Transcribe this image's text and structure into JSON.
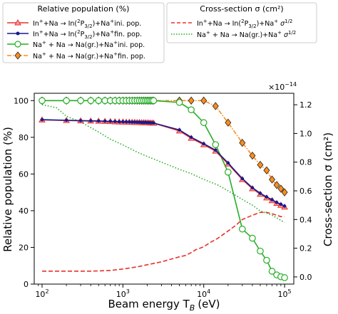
{
  "chart_data": {
    "type": "line",
    "xlabel": "Beam energy T",
    "xlabel_sub": "B",
    "xlabel_unit": "(eV)",
    "ylabel_left": "Relative population (%)",
    "ylabel_right": "Cross-section σ (cm²)",
    "x_scale": "log",
    "xlim": [
      80,
      130000
    ],
    "ylim_left": [
      0,
      104
    ],
    "ylim_right": [
      -0.05,
      1.28
    ],
    "x_ticks": [
      {
        "value": 100,
        "base": "10",
        "exp": "2"
      },
      {
        "value": 1000,
        "base": "10",
        "exp": "3"
      },
      {
        "value": 10000,
        "base": "10",
        "exp": "4"
      },
      {
        "value": 100000,
        "base": "10",
        "exp": "5"
      }
    ],
    "y_ticks_left": [
      "0",
      "20",
      "40",
      "60",
      "80",
      "100"
    ],
    "y_tick_values_left": [
      0,
      20,
      40,
      60,
      80,
      100
    ],
    "y_ticks_right": [
      "0.0",
      "0.2",
      "0.4",
      "0.6",
      "0.8",
      "1.0",
      "1.2"
    ],
    "y_tick_values_right": [
      0.0,
      0.2,
      0.4,
      0.6,
      0.8,
      1.0,
      1.2
    ],
    "right_multiplier": "×10",
    "right_multiplier_exp": "−14",
    "legend_left_title": "Relative population (%)",
    "legend_right_title": "Cross-section σ (cm²)",
    "legend_left_entries": [
      {
        "pre": "In",
        "sup1": "+",
        "mid": "+Na → In(",
        "sup2": "2",
        "p": "P",
        "sub": "3/2",
        "post": ")+Na",
        "sup3": "+",
        "end": "ini. pop."
      },
      {
        "pre": "In",
        "sup1": "+",
        "mid": "+Na → In(",
        "sup2": "2",
        "p": "P",
        "sub": "3/2",
        "post": ")+Na",
        "sup3": "+",
        "end": "fin. pop."
      },
      {
        "text1": "Na",
        "sup1": "+",
        "text2": " + Na → Na(gr.)+Na",
        "sup2": "+",
        "text3": "ini. pop."
      },
      {
        "text1": "Na",
        "sup1": "+",
        "text2": " + Na → Na(gr.)+Na",
        "sup2": "+",
        "text3": "fin. pop."
      }
    ],
    "legend_right_entries": [
      {
        "pre": "In",
        "sup1": "+",
        "mid": "+Na → In(",
        "sup2": "2",
        "p": "P",
        "sub": "3/2",
        "post": ")+Na",
        "sup3": "+",
        "sig": " σ",
        "sup4": "1/2"
      },
      {
        "text1": "Na",
        "sup1": "+",
        "text2": " + Na → Na(gr.)+Na",
        "sup2": "+",
        "sig": " σ",
        "sup4": "1/2"
      }
    ],
    "series": [
      {
        "color": "#e8322a",
        "style": "solid",
        "marker": "triangle",
        "axis": "left",
        "x": [
          100,
          200,
          300,
          400,
          500,
          600,
          700,
          800,
          900,
          1000,
          1100,
          1200,
          1300,
          1400,
          1500,
          1600,
          1700,
          1800,
          1900,
          2000,
          2100,
          2200,
          2300,
          2400,
          5000,
          7000,
          10000,
          14000,
          20000,
          30000,
          40000,
          50000,
          60000,
          70000,
          80000,
          90000,
          100000
        ],
        "y": [
          89.5,
          89.2,
          89.0,
          88.9,
          88.8,
          88.7,
          88.6,
          88.5,
          88.4,
          88.4,
          88.3,
          88.3,
          88.2,
          88.2,
          88.1,
          88.1,
          88.0,
          88.0,
          88.0,
          87.9,
          87.9,
          87.8,
          87.8,
          87.7,
          83.5,
          79.5,
          76.0,
          72.5,
          65.5,
          57.0,
          52.0,
          49.0,
          47.0,
          45.5,
          44.0,
          43.0,
          42.0
        ]
      },
      {
        "color": "#1a1a8c",
        "style": "solid",
        "marker": "dot",
        "axis": "left",
        "x": [
          100,
          200,
          300,
          400,
          500,
          600,
          700,
          800,
          900,
          1000,
          1100,
          1200,
          1300,
          1400,
          1500,
          1600,
          1700,
          1800,
          1900,
          2000,
          2100,
          2200,
          2300,
          2400,
          5000,
          7000,
          10000,
          14000,
          20000,
          30000,
          40000,
          50000,
          60000,
          70000,
          80000,
          90000,
          100000
        ],
        "y": [
          89.6,
          89.3,
          89.1,
          89.0,
          88.9,
          88.8,
          88.7,
          88.6,
          88.5,
          88.5,
          88.4,
          88.4,
          88.3,
          88.3,
          88.2,
          88.2,
          88.1,
          88.1,
          88.1,
          88.0,
          88.0,
          87.9,
          87.9,
          87.8,
          84.0,
          80.0,
          76.5,
          73.0,
          66.0,
          57.5,
          52.5,
          49.5,
          47.5,
          46.0,
          44.5,
          43.5,
          42.5
        ]
      },
      {
        "color": "#27ae27",
        "style": "solid",
        "marker": "circle",
        "axis": "left",
        "x": [
          100,
          200,
          300,
          400,
          500,
          600,
          700,
          800,
          900,
          1000,
          1100,
          1200,
          1300,
          1400,
          1500,
          1600,
          1700,
          1800,
          1900,
          2000,
          2100,
          2200,
          2300,
          2400,
          5000,
          7000,
          10000,
          14000,
          20000,
          30000,
          40000,
          50000,
          60000,
          70000,
          80000,
          90000,
          100000
        ],
        "y": [
          100,
          100,
          100,
          100,
          100,
          100,
          100,
          100,
          100,
          100,
          100,
          100,
          100,
          100,
          100,
          100,
          100,
          100,
          100,
          100,
          100,
          100,
          100,
          100,
          99,
          95,
          88,
          76,
          61,
          30,
          25,
          18,
          13,
          7,
          5,
          4,
          3.5
        ]
      },
      {
        "color": "#ff8c1a",
        "style": "dashdot",
        "marker": "diamond",
        "axis": "left",
        "x": [
          100,
          200,
          300,
          400,
          500,
          600,
          700,
          800,
          900,
          1000,
          1100,
          1200,
          1300,
          1400,
          1500,
          1600,
          1700,
          1800,
          1900,
          2000,
          2100,
          2200,
          2300,
          2400,
          5000,
          7000,
          10000,
          14000,
          20000,
          30000,
          40000,
          50000,
          60000,
          70000,
          80000,
          90000,
          100000
        ],
        "y": [
          100,
          100,
          100,
          100,
          100,
          100,
          100,
          100,
          100,
          100,
          100,
          100,
          100,
          100,
          100,
          100,
          100,
          100,
          100,
          100,
          100,
          100,
          100,
          100,
          100,
          100,
          100,
          97,
          88,
          77,
          70,
          65,
          62,
          57,
          54,
          52,
          50
        ]
      },
      {
        "color": "#e8322a",
        "style": "dashed",
        "marker": "none",
        "axis": "right",
        "x": [
          100,
          200,
          400,
          700,
          1000,
          1500,
          2000,
          3000,
          4000,
          5000,
          6000,
          7000,
          8000,
          10000,
          12000,
          15000,
          20000,
          25000,
          30000,
          40000,
          50000,
          60000,
          70000,
          80000,
          90000,
          100000
        ],
        "y": [
          0.04,
          0.04,
          0.04,
          0.045,
          0.055,
          0.07,
          0.085,
          0.105,
          0.125,
          0.14,
          0.15,
          0.17,
          0.19,
          0.21,
          0.24,
          0.27,
          0.32,
          0.36,
          0.4,
          0.43,
          0.45,
          0.45,
          0.44,
          0.43,
          0.42,
          0.42
        ]
      },
      {
        "color": "#27ae27",
        "style": "dotted",
        "marker": "none",
        "axis": "right",
        "x": [
          100,
          150,
          200,
          300,
          500,
          700,
          1000,
          1500,
          2000,
          3000,
          5000,
          7000,
          10000,
          15000,
          20000,
          30000,
          40000,
          50000,
          70000,
          100000
        ],
        "y": [
          1.2,
          1.18,
          1.12,
          1.08,
          1.01,
          0.96,
          0.92,
          0.87,
          0.84,
          0.8,
          0.75,
          0.72,
          0.68,
          0.64,
          0.6,
          0.54,
          0.5,
          0.46,
          0.43,
          0.38
        ]
      }
    ]
  }
}
